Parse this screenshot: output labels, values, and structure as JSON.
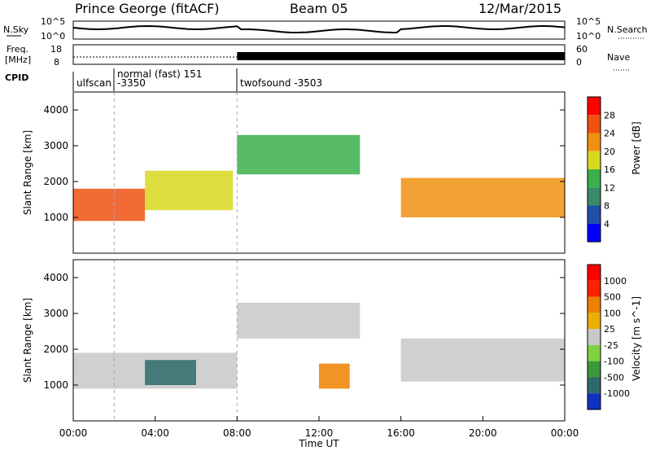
{
  "header": {
    "station": "Prince George (fitACF)",
    "beam": "Beam 05",
    "date": "12/Mar/2015"
  },
  "noise_panel": {
    "left_label": "N.Sky",
    "right_label": "N.Search",
    "left_ticks": [
      "10^5",
      "10^0"
    ],
    "right_ticks": [
      "10^5",
      "10^0"
    ]
  },
  "freq_panel": {
    "left_label_1": "Freq.",
    "left_label_2": "[MHz]",
    "right_label": "Nave",
    "left_ticks": [
      "18",
      "8"
    ],
    "right_ticks": [
      "60",
      "0"
    ]
  },
  "cpid": {
    "label": "CPID",
    "segments": [
      {
        "name": "ulfscan",
        "text": "ulfscan",
        "start_hour": 0.0
      },
      {
        "name": "normal",
        "text": "normal (fast) 151",
        "start_hour": 2.0
      },
      {
        "name": "normal-id",
        "text": "-3350",
        "start_hour": 2.0
      },
      {
        "name": "twofsound",
        "text": "twofsound -3503",
        "start_hour": 8.0
      }
    ]
  },
  "power_panel": {
    "ylabel": "Slant Range [km]",
    "yticks": [
      "4000",
      "3000",
      "2000",
      "1000"
    ],
    "colorbar_label": "Power [dB]",
    "colorbar_ticks": [
      "28",
      "24",
      "20",
      "16",
      "12",
      "8",
      "4"
    ],
    "colors": [
      "#0000ff",
      "#2050a8",
      "#3a8a6a",
      "#3ab04a",
      "#d8d820",
      "#f09010",
      "#f05010",
      "#ff0000"
    ]
  },
  "velocity_panel": {
    "ylabel": "Slant Range [km]",
    "yticks": [
      "4000",
      "3000",
      "2000",
      "1000"
    ],
    "colorbar_label": "Velocity [m s^-1]",
    "colorbar_ticks": [
      "1000",
      "500",
      "100",
      "25",
      "-25",
      "-100",
      "-500",
      "-1000"
    ],
    "colors": [
      "#1030c0",
      "#2e6a6a",
      "#3a9a3a",
      "#80d040",
      "#c8c8c8",
      "#e8b000",
      "#f08000",
      "#ff2000",
      "#ff0000"
    ]
  },
  "x_axis": {
    "label": "Time UT",
    "ticks": [
      "00:00",
      "04:00",
      "08:00",
      "12:00",
      "16:00",
      "20:00",
      "00:00"
    ]
  },
  "chart_data": {
    "type": "heatmap",
    "title": "Prince George (fitACF) Beam 05 12/Mar/2015",
    "xlabel": "Time UT",
    "ylabel": "Slant Range [km]",
    "xlim": [
      0,
      24
    ],
    "ylim": [
      0,
      4500
    ],
    "series": [
      {
        "name": "Power [dB]",
        "scale": [
          4,
          8,
          12,
          16,
          20,
          24,
          28
        ],
        "features": [
          {
            "t0": 0.0,
            "t1": 3.5,
            "r0": 900,
            "r1": 1800,
            "value": 26
          },
          {
            "t0": 3.5,
            "t1": 7.8,
            "r0": 1200,
            "r1": 2300,
            "value": 18
          },
          {
            "t0": 8.0,
            "t1": 14.0,
            "r0": 2200,
            "r1": 3300,
            "value": 14
          },
          {
            "t0": 16.0,
            "t1": 24.0,
            "r0": 1000,
            "r1": 2100,
            "value": 22
          }
        ]
      },
      {
        "name": "Velocity [m s-1]",
        "scale": [
          -1000,
          -500,
          -100,
          -25,
          25,
          100,
          500,
          1000
        ],
        "features": [
          {
            "t0": 0.0,
            "t1": 8.0,
            "r0": 900,
            "r1": 1900,
            "value": 0
          },
          {
            "t0": 3.5,
            "t1": 6.0,
            "r0": 1000,
            "r1": 1700,
            "value": -800
          },
          {
            "t0": 8.0,
            "t1": 14.0,
            "r0": 2300,
            "r1": 3300,
            "value": 0
          },
          {
            "t0": 12.0,
            "t1": 13.5,
            "r0": 900,
            "r1": 1600,
            "value": 200
          },
          {
            "t0": 16.0,
            "t1": 24.0,
            "r0": 1100,
            "r1": 2300,
            "value": 0
          }
        ]
      }
    ]
  }
}
